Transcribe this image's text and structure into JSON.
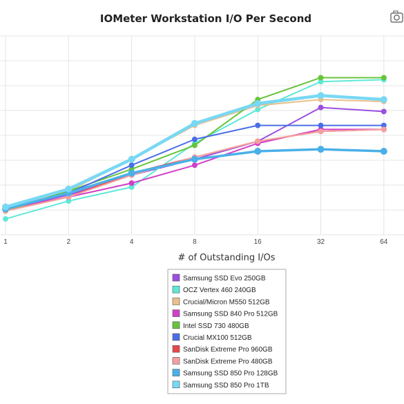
{
  "chart_data": {
    "type": "line",
    "title": "IOMeter Workstation I/O Per Second",
    "xlabel": "# of Outstanding I/Os",
    "ylabel": "",
    "x": [
      1,
      2,
      4,
      8,
      16,
      32,
      64
    ],
    "x_ticks": [
      "1",
      "2",
      "4",
      "8",
      "16",
      "32",
      "64"
    ],
    "ylim": [
      0,
      100
    ],
    "grid": true,
    "legend": "bottom-center",
    "series": [
      {
        "name": "Samsung SSD Evo 250GB",
        "color": "#9b4fe0",
        "width": 2,
        "values": [
          13,
          20,
          30,
          38,
          47,
          64,
          62
        ]
      },
      {
        "name": "OCZ Vertex 460 240GB",
        "color": "#5ee8d8",
        "width": 2,
        "values": [
          8,
          17,
          24,
          46,
          63,
          77,
          78
        ]
      },
      {
        "name": "Crucial/Micron M550 512GB",
        "color": "#e8c08c",
        "width": 2,
        "values": [
          13,
          22,
          38,
          55,
          65,
          68,
          67
        ]
      },
      {
        "name": "Samsung SSD 840 Pro 512GB",
        "color": "#d040c8",
        "width": 2,
        "values": [
          13,
          19,
          26,
          35,
          46,
          53,
          53
        ]
      },
      {
        "name": "Intel SSD 730 480GB",
        "color": "#66c43a",
        "width": 2,
        "values": [
          12,
          22,
          33,
          45,
          68,
          79,
          79
        ]
      },
      {
        "name": "Crucial MX100 512GB",
        "color": "#4b6ee8",
        "width": 2,
        "values": [
          13,
          21,
          35,
          48,
          55,
          55,
          55
        ]
      },
      {
        "name": "SanDisk Extreme Pro 960GB",
        "color": "#e84848",
        "width": 2,
        "values": [
          12,
          19,
          31,
          39,
          47,
          52,
          53
        ]
      },
      {
        "name": "SanDisk Extreme Pro 480GB",
        "color": "#f4a0a0",
        "width": 2,
        "values": [
          12,
          19,
          30,
          39,
          47,
          52,
          53
        ]
      },
      {
        "name": "Samsung SSD 850 Pro 128GB",
        "color": "#4ab0e8",
        "width": 3.5,
        "values": [
          13,
          21,
          31,
          38,
          42,
          43,
          42
        ]
      },
      {
        "name": "Samsung SSD 850 Pro 1TB",
        "color": "#78d8f4",
        "width": 4.5,
        "values": [
          14,
          23,
          38,
          56,
          66,
          70,
          68
        ]
      }
    ]
  }
}
